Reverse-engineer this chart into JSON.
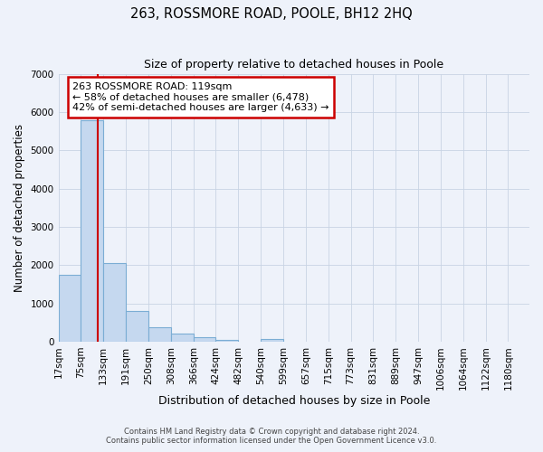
{
  "title": "263, ROSSMORE ROAD, POOLE, BH12 2HQ",
  "subtitle": "Size of property relative to detached houses in Poole",
  "xlabel": "Distribution of detached houses by size in Poole",
  "ylabel": "Number of detached properties",
  "bar_left_edges": [
    17,
    75,
    133,
    191,
    250,
    308,
    366,
    424,
    482,
    540,
    599,
    657,
    715,
    773,
    831,
    889,
    947,
    1006,
    1064,
    1122
  ],
  "bar_heights": [
    1750,
    5800,
    2050,
    800,
    370,
    220,
    105,
    55,
    0,
    60,
    0,
    0,
    0,
    0,
    0,
    0,
    0,
    0,
    0,
    0
  ],
  "bin_width": 58,
  "bar_color": "#c5d8ef",
  "bar_edge_color": "#7badd4",
  "property_line_x": 119,
  "property_line_color": "#cc0000",
  "annotation_line1": "263 ROSSMORE ROAD: 119sqm",
  "annotation_line2": "← 58% of detached houses are smaller (6,478)",
  "annotation_line3": "42% of semi-detached houses are larger (4,633) →",
  "annotation_box_color": "#ffffff",
  "annotation_box_edgecolor": "#cc0000",
  "tick_labels": [
    "17sqm",
    "75sqm",
    "133sqm",
    "191sqm",
    "250sqm",
    "308sqm",
    "366sqm",
    "424sqm",
    "482sqm",
    "540sqm",
    "599sqm",
    "657sqm",
    "715sqm",
    "773sqm",
    "831sqm",
    "889sqm",
    "947sqm",
    "1006sqm",
    "1064sqm",
    "1122sqm",
    "1180sqm"
  ],
  "ylim": [
    0,
    7000
  ],
  "yticks": [
    0,
    1000,
    2000,
    3000,
    4000,
    5000,
    6000,
    7000
  ],
  "grid_color": "#c8d4e4",
  "footer_line1": "Contains HM Land Registry data © Crown copyright and database right 2024.",
  "footer_line2": "Contains public sector information licensed under the Open Government Licence v3.0.",
  "bg_color": "#eef2fa"
}
